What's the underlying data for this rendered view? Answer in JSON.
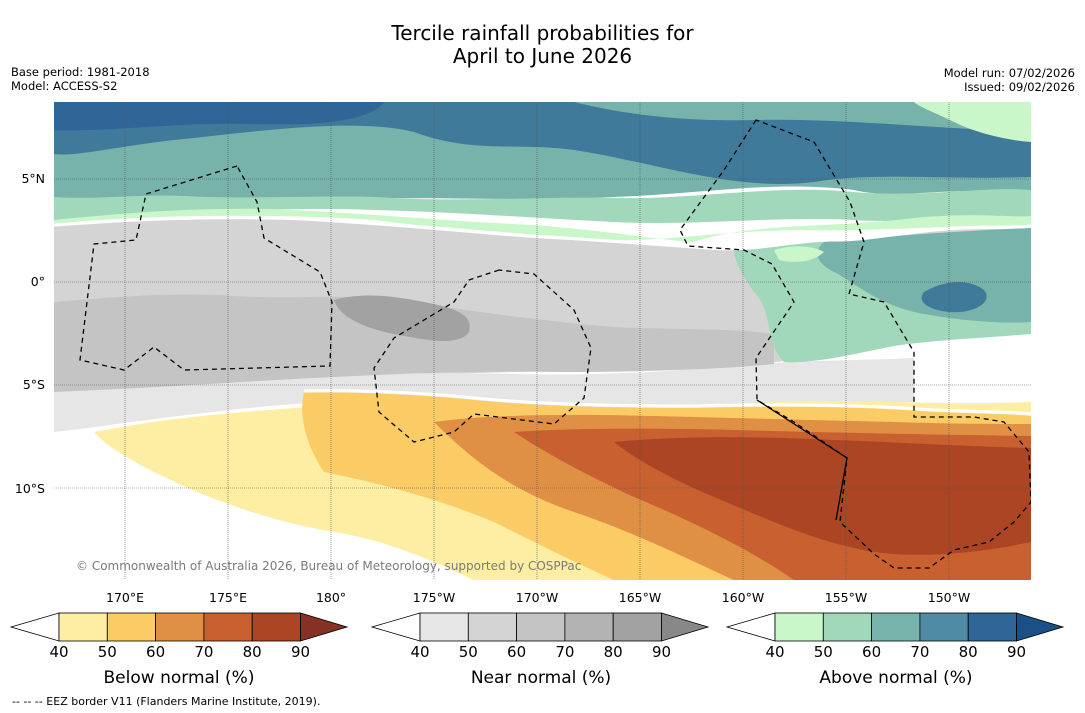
{
  "title": {
    "line1": "Tercile rainfall probabilities for",
    "line2": "April to June 2026"
  },
  "meta_left": {
    "base_period": "Base period: 1981-2018",
    "model": "Model: ACCESS-S2"
  },
  "meta_right": {
    "model_run": "Model run: 07/02/2026",
    "issued": "Issued: 09/02/2026"
  },
  "lat_labels": [
    "5°N",
    "0°",
    "5°S",
    "10°S"
  ],
  "lon_labels": [
    "170°E",
    "175°E",
    "180°",
    "175°W",
    "170°W",
    "165°W",
    "160°W",
    "155°W",
    "150°W"
  ],
  "copyright": "© Commonwealth of Australia 2026, Bureau of Meteorology, supported by COSPPac",
  "colorbars": {
    "below": {
      "title": "Below normal (%)",
      "ticks": [
        "40",
        "50",
        "60",
        "70",
        "80",
        "90"
      ],
      "colors": [
        "#ffffff",
        "#fdeea4",
        "#fbcb66",
        "#e09044",
        "#c9602f",
        "#ab4524",
        "#853224"
      ]
    },
    "near": {
      "title": "Near normal (%)",
      "ticks": [
        "40",
        "50",
        "60",
        "70",
        "80",
        "90"
      ],
      "colors": [
        "#ffffff",
        "#e6e6e6",
        "#d4d4d4",
        "#c4c4c4",
        "#b3b3b3",
        "#a2a2a2",
        "#888888"
      ]
    },
    "above": {
      "title": "Above normal (%)",
      "ticks": [
        "40",
        "50",
        "60",
        "70",
        "80",
        "90"
      ],
      "colors": [
        "#ffffff",
        "#c9f7c9",
        "#a1d8bc",
        "#78b3ab",
        "#4f8ba4",
        "#2f6697",
        "#1a4f88"
      ]
    }
  },
  "footnote": "-- -- -- EEZ border V11 (Flanders Marine Institute, 2019)."
}
